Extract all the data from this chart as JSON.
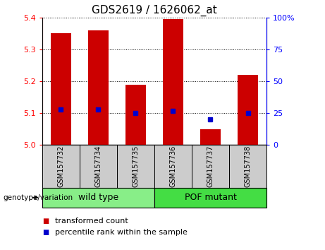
{
  "title": "GDS2619 / 1626062_at",
  "samples": [
    "GSM157732",
    "GSM157734",
    "GSM157735",
    "GSM157736",
    "GSM157737",
    "GSM157738"
  ],
  "red_values": [
    5.35,
    5.36,
    5.19,
    5.395,
    5.05,
    5.22
  ],
  "blue_percentiles": [
    28,
    28,
    25,
    27,
    20,
    25
  ],
  "ylim_left": [
    5.0,
    5.4
  ],
  "ylim_right": [
    0,
    100
  ],
  "yticks_left": [
    5.0,
    5.1,
    5.2,
    5.3,
    5.4
  ],
  "yticks_right": [
    0,
    25,
    50,
    75,
    100
  ],
  "ytick_labels_right": [
    "0",
    "25",
    "50",
    "75",
    "100%"
  ],
  "bar_color": "#cc0000",
  "dot_color": "#0000cc",
  "groups": [
    {
      "label": "wild type",
      "indices": [
        0,
        1,
        2
      ],
      "color": "#88ee88"
    },
    {
      "label": "POF mutant",
      "indices": [
        3,
        4,
        5
      ],
      "color": "#44dd44"
    }
  ],
  "group_label": "genotype/variation",
  "legend_items": [
    {
      "label": "transformed count",
      "color": "#cc0000"
    },
    {
      "label": "percentile rank within the sample",
      "color": "#0000cc"
    }
  ],
  "bar_width": 0.55,
  "background_plot": "#ffffff",
  "background_label": "#cccccc",
  "title_fontsize": 11,
  "tick_fontsize": 8,
  "sample_fontsize": 7,
  "group_fontsize": 9,
  "legend_fontsize": 8
}
